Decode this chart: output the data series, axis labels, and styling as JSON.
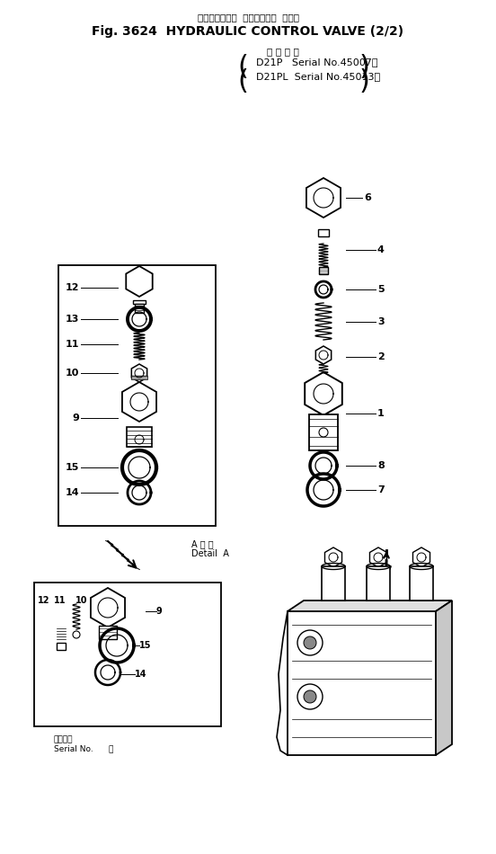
{
  "title_jp": "ハイドロリック  コントロール  バルブ",
  "title_en": "Fig. 3624  HYDRAULIC CONTROL VALVE (2/2)",
  "serial_label_jp": "適 用 号 機",
  "serial_line1": "D21P   Serial No.45007～",
  "serial_line2": "D21PL  Serial No.45013～",
  "detail_label_1": "A 詳 細",
  "detail_label_2": "Detail  A",
  "serial_bottom_1": "適用号機",
  "serial_bottom_2": "Serial No.      ～",
  "bg_color": "#ffffff",
  "text_color": "#000000"
}
